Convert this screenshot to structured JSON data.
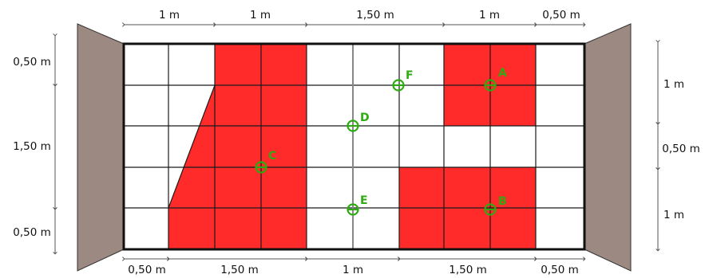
{
  "colors": {
    "red_fill": "#ff2a2a",
    "grid_line": "#1a1a1a",
    "panel": "#9c8981",
    "point": "#2eaa12",
    "dim_line": "#555555",
    "background": "#ffffff"
  },
  "top_dimensions": [
    "1 m",
    "1 m",
    "1,50 m",
    "1 m",
    "0,50 m"
  ],
  "bottom_dimensions": [
    "0,50 m",
    "1,50 m",
    "1 m",
    "1,50 m",
    "0,50 m"
  ],
  "left_dimensions": [
    "0,50 m",
    "1,50 m",
    "0,50 m"
  ],
  "right_dimensions": [
    "1 m",
    "0,50 m",
    "1 m"
  ],
  "points": [
    "A",
    "B",
    "C",
    "D",
    "E",
    "F"
  ]
}
